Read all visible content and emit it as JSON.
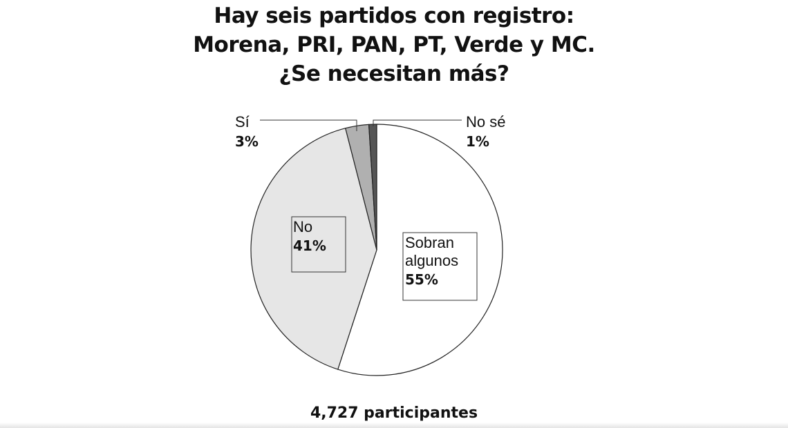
{
  "chart_data": {
    "type": "pie",
    "title": [
      "Hay seis partidos con registro:",
      "Morena, PRI, PAN, PT, Verde y MC.",
      "¿Se necesitan más?"
    ],
    "slices": [
      {
        "label": [
          "Sobran",
          "algunos"
        ],
        "value": 55,
        "value_label": "55%",
        "color": "#ffffff"
      },
      {
        "label": [
          "No"
        ],
        "value": 41,
        "value_label": "41%",
        "color": "#e6e6e6"
      },
      {
        "label": [
          "Sí"
        ],
        "value": 3,
        "value_label": "3%",
        "color": "#b0b0b0"
      },
      {
        "label": [
          "No sé"
        ],
        "value": 1,
        "value_label": "1%",
        "color": "#555555"
      }
    ],
    "start_angle_deg": 0,
    "direction": "clockwise",
    "footer": "4,727 participantes"
  }
}
